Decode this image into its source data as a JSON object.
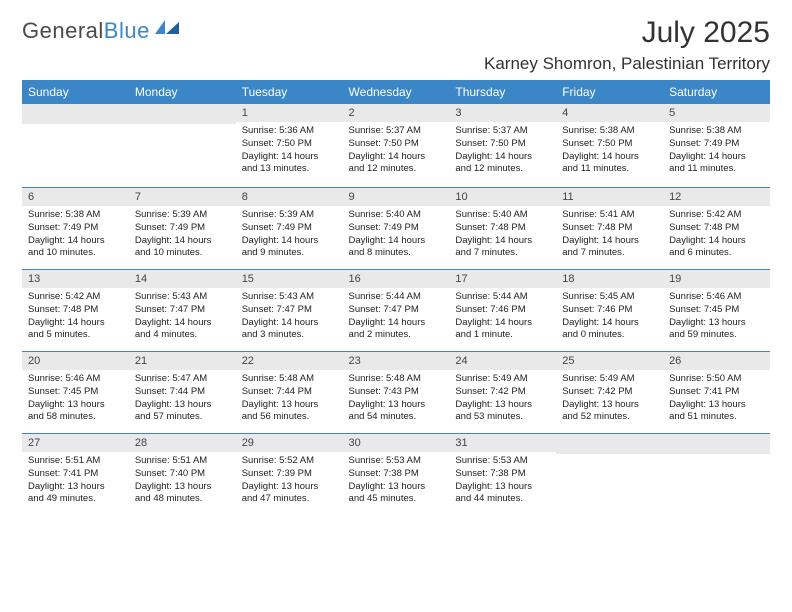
{
  "logo": {
    "word1": "General",
    "word2": "Blue"
  },
  "title": {
    "month": "July 2025",
    "location": "Karney Shomron, Palestinian Territory"
  },
  "colors": {
    "header_bg": "#3b86c6",
    "header_text": "#ffffff",
    "daynum_bg": "#e9e9e9",
    "rule": "#3b86c6",
    "logo_gray": "#4a4a4a",
    "logo_blue": "#3b86c6"
  },
  "dayNames": [
    "Sunday",
    "Monday",
    "Tuesday",
    "Wednesday",
    "Thursday",
    "Friday",
    "Saturday"
  ],
  "firstWeekday": 2,
  "daysInMonth": 31,
  "cells": {
    "1": {
      "sunrise": "5:36 AM",
      "sunset": "7:50 PM",
      "daylight": "14 hours and 13 minutes."
    },
    "2": {
      "sunrise": "5:37 AM",
      "sunset": "7:50 PM",
      "daylight": "14 hours and 12 minutes."
    },
    "3": {
      "sunrise": "5:37 AM",
      "sunset": "7:50 PM",
      "daylight": "14 hours and 12 minutes."
    },
    "4": {
      "sunrise": "5:38 AM",
      "sunset": "7:50 PM",
      "daylight": "14 hours and 11 minutes."
    },
    "5": {
      "sunrise": "5:38 AM",
      "sunset": "7:49 PM",
      "daylight": "14 hours and 11 minutes."
    },
    "6": {
      "sunrise": "5:38 AM",
      "sunset": "7:49 PM",
      "daylight": "14 hours and 10 minutes."
    },
    "7": {
      "sunrise": "5:39 AM",
      "sunset": "7:49 PM",
      "daylight": "14 hours and 10 minutes."
    },
    "8": {
      "sunrise": "5:39 AM",
      "sunset": "7:49 PM",
      "daylight": "14 hours and 9 minutes."
    },
    "9": {
      "sunrise": "5:40 AM",
      "sunset": "7:49 PM",
      "daylight": "14 hours and 8 minutes."
    },
    "10": {
      "sunrise": "5:40 AM",
      "sunset": "7:48 PM",
      "daylight": "14 hours and 7 minutes."
    },
    "11": {
      "sunrise": "5:41 AM",
      "sunset": "7:48 PM",
      "daylight": "14 hours and 7 minutes."
    },
    "12": {
      "sunrise": "5:42 AM",
      "sunset": "7:48 PM",
      "daylight": "14 hours and 6 minutes."
    },
    "13": {
      "sunrise": "5:42 AM",
      "sunset": "7:48 PM",
      "daylight": "14 hours and 5 minutes."
    },
    "14": {
      "sunrise": "5:43 AM",
      "sunset": "7:47 PM",
      "daylight": "14 hours and 4 minutes."
    },
    "15": {
      "sunrise": "5:43 AM",
      "sunset": "7:47 PM",
      "daylight": "14 hours and 3 minutes."
    },
    "16": {
      "sunrise": "5:44 AM",
      "sunset": "7:47 PM",
      "daylight": "14 hours and 2 minutes."
    },
    "17": {
      "sunrise": "5:44 AM",
      "sunset": "7:46 PM",
      "daylight": "14 hours and 1 minute."
    },
    "18": {
      "sunrise": "5:45 AM",
      "sunset": "7:46 PM",
      "daylight": "14 hours and 0 minutes."
    },
    "19": {
      "sunrise": "5:46 AM",
      "sunset": "7:45 PM",
      "daylight": "13 hours and 59 minutes."
    },
    "20": {
      "sunrise": "5:46 AM",
      "sunset": "7:45 PM",
      "daylight": "13 hours and 58 minutes."
    },
    "21": {
      "sunrise": "5:47 AM",
      "sunset": "7:44 PM",
      "daylight": "13 hours and 57 minutes."
    },
    "22": {
      "sunrise": "5:48 AM",
      "sunset": "7:44 PM",
      "daylight": "13 hours and 56 minutes."
    },
    "23": {
      "sunrise": "5:48 AM",
      "sunset": "7:43 PM",
      "daylight": "13 hours and 54 minutes."
    },
    "24": {
      "sunrise": "5:49 AM",
      "sunset": "7:42 PM",
      "daylight": "13 hours and 53 minutes."
    },
    "25": {
      "sunrise": "5:49 AM",
      "sunset": "7:42 PM",
      "daylight": "13 hours and 52 minutes."
    },
    "26": {
      "sunrise": "5:50 AM",
      "sunset": "7:41 PM",
      "daylight": "13 hours and 51 minutes."
    },
    "27": {
      "sunrise": "5:51 AM",
      "sunset": "7:41 PM",
      "daylight": "13 hours and 49 minutes."
    },
    "28": {
      "sunrise": "5:51 AM",
      "sunset": "7:40 PM",
      "daylight": "13 hours and 48 minutes."
    },
    "29": {
      "sunrise": "5:52 AM",
      "sunset": "7:39 PM",
      "daylight": "13 hours and 47 minutes."
    },
    "30": {
      "sunrise": "5:53 AM",
      "sunset": "7:38 PM",
      "daylight": "13 hours and 45 minutes."
    },
    "31": {
      "sunrise": "5:53 AM",
      "sunset": "7:38 PM",
      "daylight": "13 hours and 44 minutes."
    }
  },
  "labels": {
    "sunrise": "Sunrise:",
    "sunset": "Sunset:",
    "daylight": "Daylight:"
  }
}
